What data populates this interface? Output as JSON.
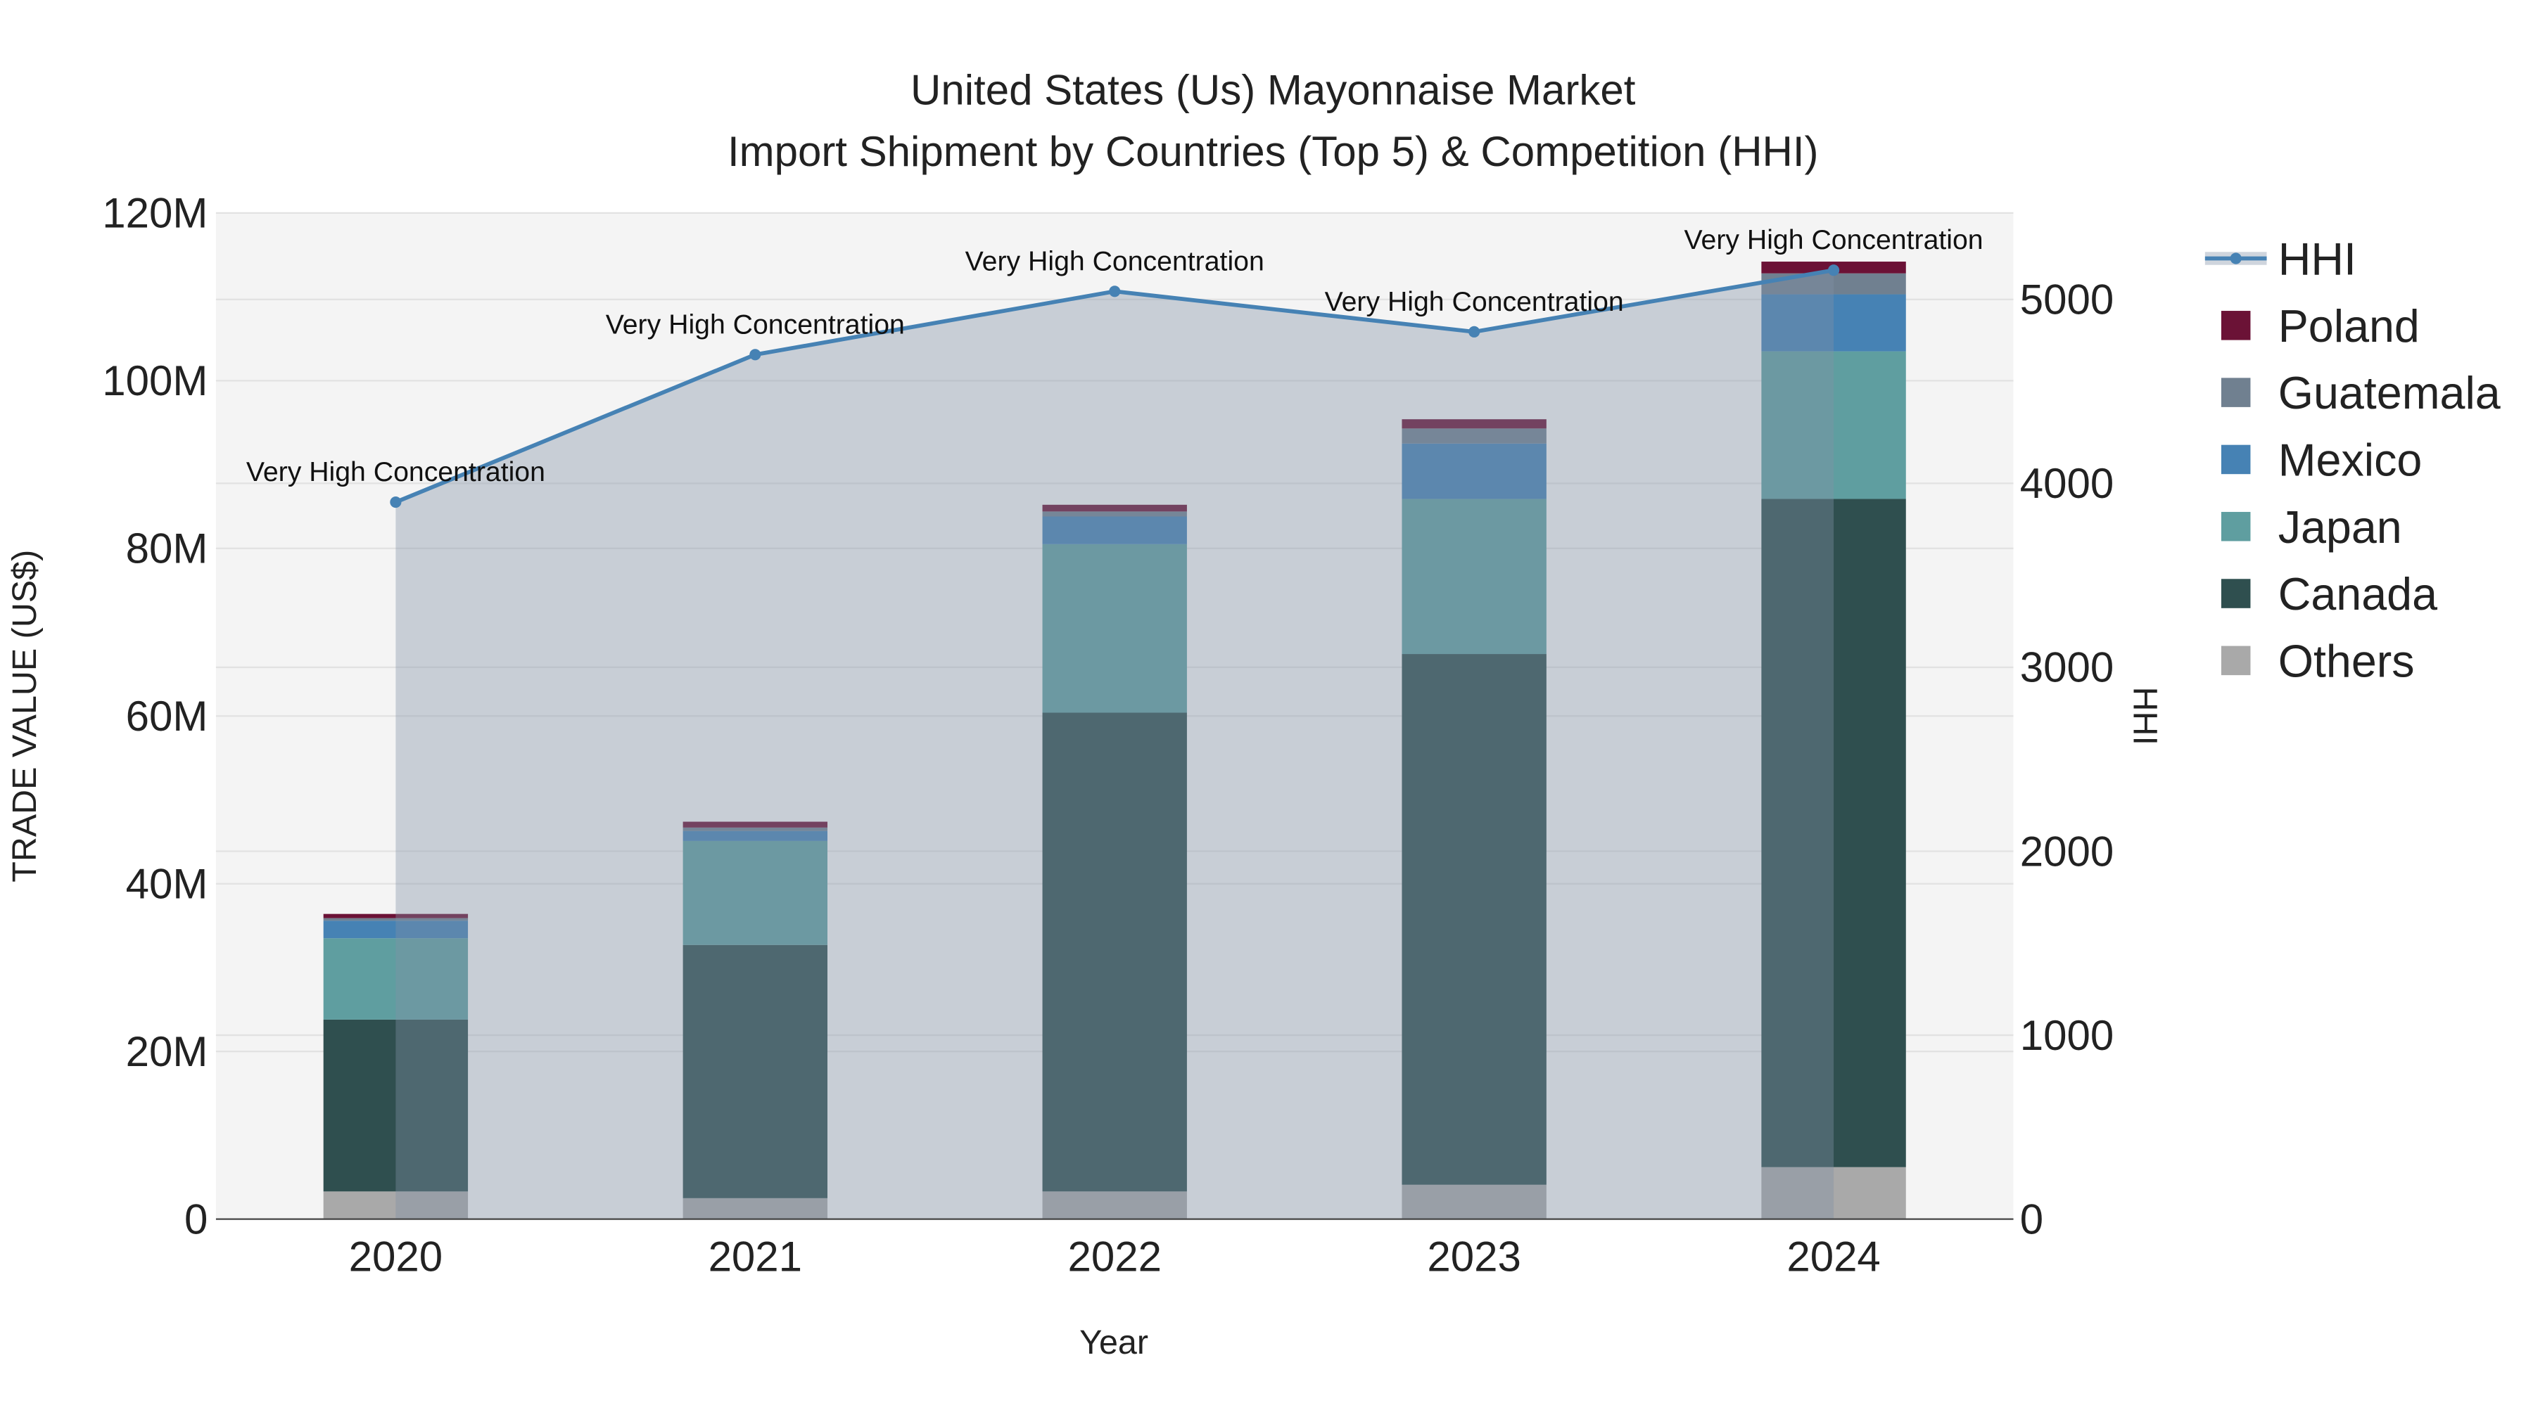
{
  "chart_data": {
    "type": "bar",
    "stacked": true,
    "title_line1": "United States (Us) Mayonnaise Market",
    "title_line2": "Import Shipment by Countries (Top 5) & Competition (HHI)",
    "xlabel": "Year",
    "ylabel": "TRADE VALUE (US$)",
    "y2label": "HHI",
    "ylim": [
      0,
      120000000
    ],
    "y2lim": [
      0,
      5470
    ],
    "yticks": [
      0,
      20000000,
      40000000,
      60000000,
      80000000,
      100000000,
      120000000
    ],
    "ytick_labels": [
      "0",
      "20M",
      "40M",
      "60M",
      "80M",
      "100M",
      "120M"
    ],
    "y2ticks": [
      0,
      1000,
      2000,
      3000,
      4000,
      5000
    ],
    "y2tick_labels": [
      "0",
      "1000",
      "2000",
      "3000",
      "4000",
      "5000"
    ],
    "categories": [
      "2020",
      "2021",
      "2022",
      "2023",
      "2024"
    ],
    "series": [
      {
        "name": "Others",
        "color": "#a9a9a9",
        "values": [
          3300000,
          2500000,
          3300000,
          4100000,
          6200000
        ]
      },
      {
        "name": "Canada",
        "color": "#2f4f4f",
        "values": [
          20500000,
          30200000,
          57100000,
          63300000,
          79700000
        ]
      },
      {
        "name": "Japan",
        "color": "#5f9ea0",
        "values": [
          9700000,
          12400000,
          20100000,
          18500000,
          17600000
        ]
      },
      {
        "name": "Mexico",
        "color": "#4682b4",
        "values": [
          2100000,
          1200000,
          3300000,
          6600000,
          6800000
        ]
      },
      {
        "name": "Guatemala",
        "color": "#708090",
        "values": [
          300000,
          400000,
          600000,
          1800000,
          2500000
        ]
      },
      {
        "name": "Poland",
        "color": "#6b1236",
        "values": [
          500000,
          700000,
          800000,
          1100000,
          1400000
        ]
      }
    ],
    "hhi": {
      "name": "HHI",
      "color": "#4682b4",
      "values": [
        3898,
        4700,
        5044,
        4824,
        5159
      ]
    },
    "annotations": [
      "Very High Concentration",
      "Very High Concentration",
      "Very High Concentration",
      "Very High Concentration",
      "Very High Concentration"
    ],
    "legend_order": [
      "HHI",
      "Poland",
      "Guatemala",
      "Mexico",
      "Japan",
      "Canada",
      "Others"
    ],
    "legend_position": "right",
    "grid": true
  }
}
